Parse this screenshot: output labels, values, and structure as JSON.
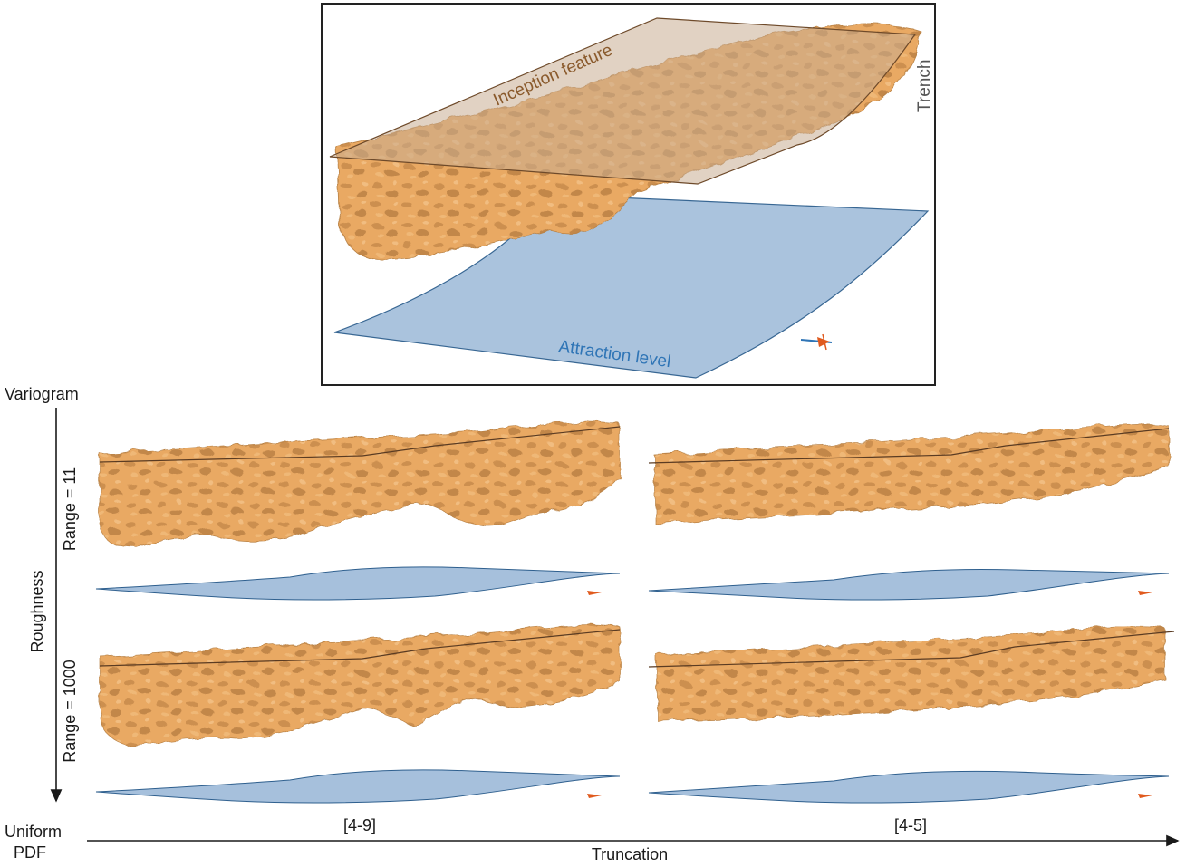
{
  "top_panel": {
    "inception_label": "Inception feature",
    "trench_label": "Trench",
    "attraction_label": "Attraction level"
  },
  "axes": {
    "vertical_top_label": "Variogram",
    "vertical_axis_label": "Roughness",
    "origin_label_line1": "Uniform",
    "origin_label_line2": "PDF",
    "horizontal_axis_label": "Truncation"
  },
  "rows": [
    {
      "label": "Range = 11"
    },
    {
      "label": "Range = 1000"
    }
  ],
  "columns": [
    {
      "label": "[4-9]"
    },
    {
      "label": "[4-5]"
    }
  ],
  "colors": {
    "karst": "#e9a963",
    "karst_dark": "#8a5a2c",
    "inception_plane": "#c9ad92",
    "inception_text": "#8a5a2c",
    "attraction_plane": "#a6c0dc",
    "attraction_text": "#2f75b6",
    "frame": "#222222"
  }
}
